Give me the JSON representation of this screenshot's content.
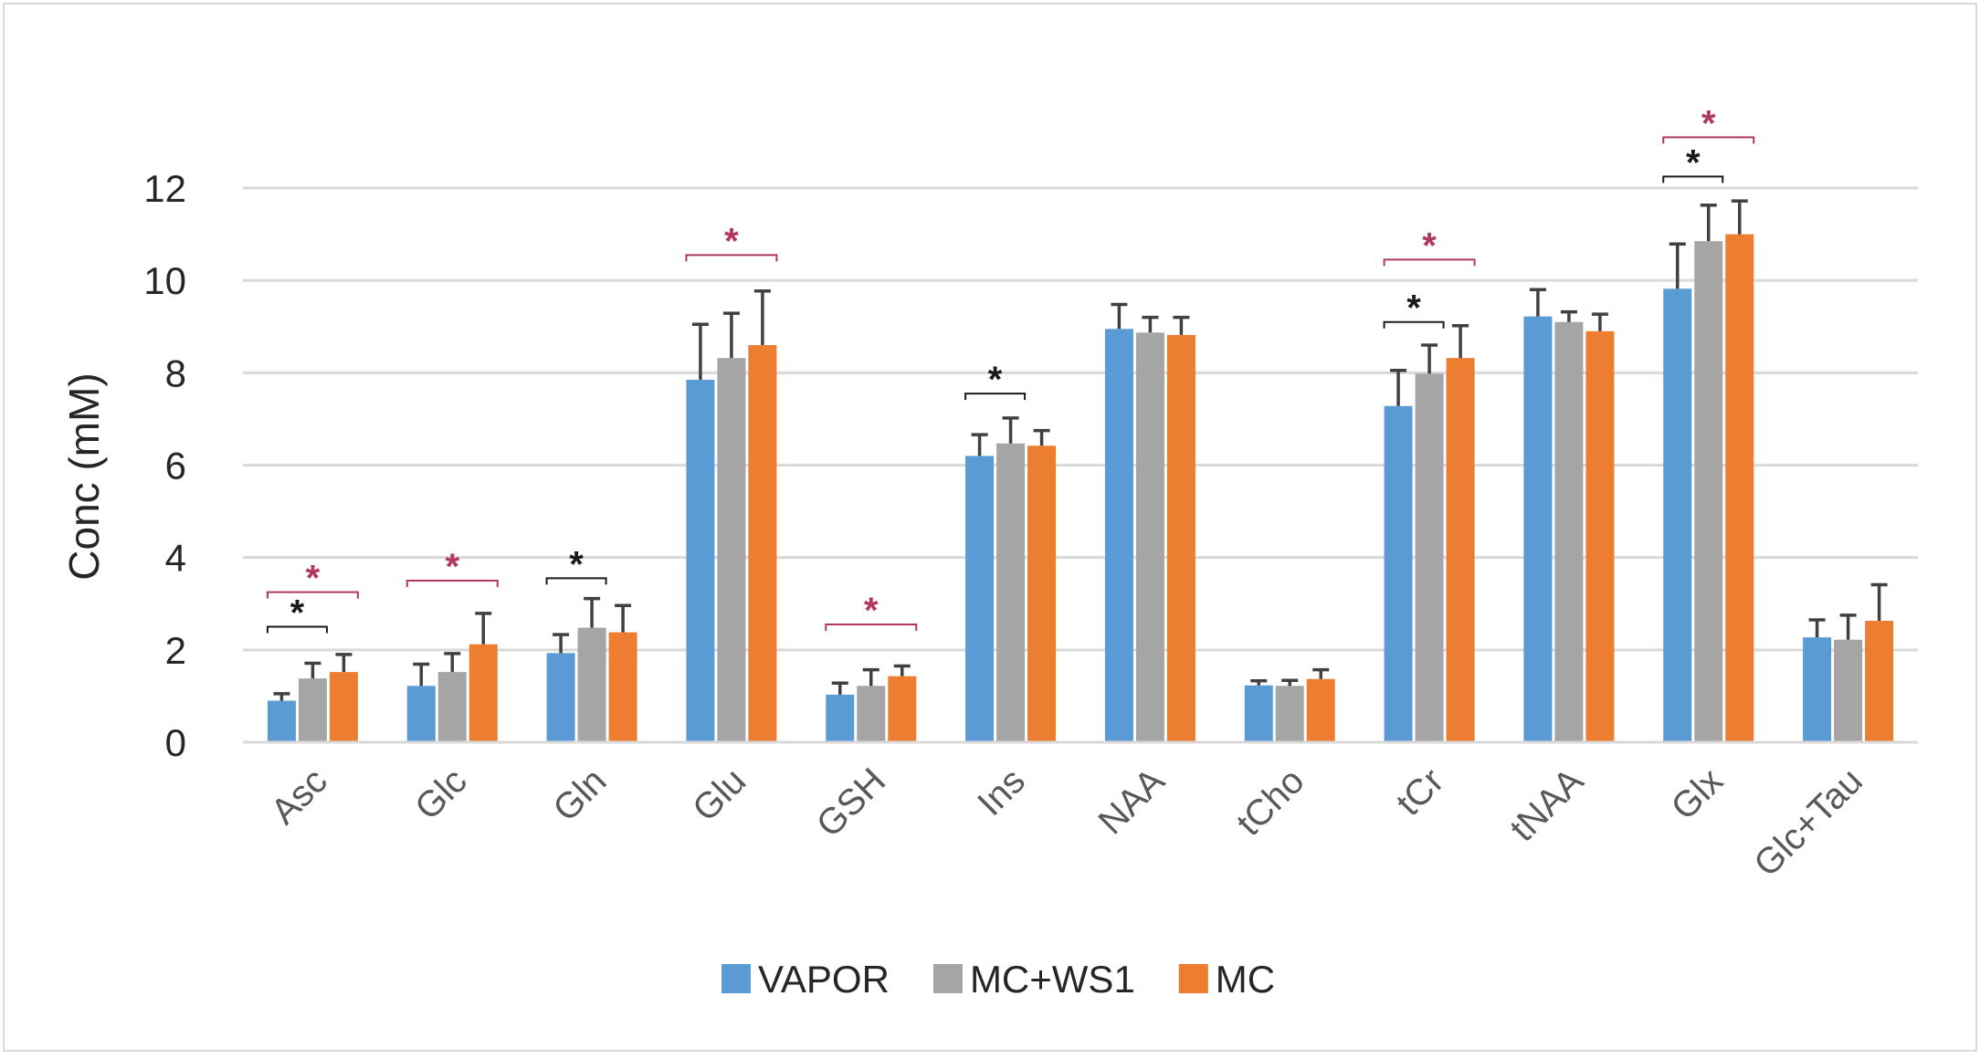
{
  "chart_data": {
    "type": "bar",
    "title": "",
    "xlabel": "",
    "ylabel": "Conc (mM)",
    "ylim": [
      0,
      12
    ],
    "yticks": [
      0,
      2,
      4,
      6,
      8,
      10,
      12
    ],
    "grid": true,
    "legend_position": "bottom",
    "categories": [
      "Asc",
      "Glc",
      "Gln",
      "Glu",
      "GSH",
      "Ins",
      "NAA",
      "tCho",
      "tCr",
      "tNAA",
      "Glx",
      "Glc+Tau"
    ],
    "series": [
      {
        "name": "VAPOR",
        "color": "#5B9BD5",
        "values": [
          0.9,
          1.22,
          1.93,
          7.85,
          1.03,
          6.2,
          8.95,
          1.23,
          7.28,
          9.22,
          9.82,
          2.27
        ],
        "errors": [
          0.15,
          0.47,
          0.4,
          1.2,
          0.25,
          0.46,
          0.53,
          0.1,
          0.77,
          0.58,
          0.97,
          0.38
        ]
      },
      {
        "name": "MC+WS1",
        "color": "#A5A5A5",
        "values": [
          1.38,
          1.52,
          2.48,
          8.32,
          1.22,
          6.47,
          8.87,
          1.22,
          7.98,
          9.1,
          10.85,
          2.22
        ],
        "errors": [
          0.33,
          0.4,
          0.63,
          0.97,
          0.35,
          0.55,
          0.33,
          0.12,
          0.62,
          0.22,
          0.78,
          0.53
        ]
      },
      {
        "name": "MC",
        "color": "#ED7D31",
        "values": [
          1.52,
          2.12,
          2.38,
          8.6,
          1.43,
          6.42,
          8.82,
          1.37,
          8.32,
          8.9,
          11.0,
          2.63
        ],
        "errors": [
          0.38,
          0.67,
          0.58,
          1.17,
          0.22,
          0.33,
          0.38,
          0.2,
          0.7,
          0.37,
          0.72,
          0.78
        ]
      }
    ],
    "significance": [
      {
        "category": "Asc",
        "pair": [
          "VAPOR",
          "MC+WS1"
        ],
        "label": "*",
        "color": "#1a1a1a",
        "level": 2.5
      },
      {
        "category": "Asc",
        "pair": [
          "VAPOR",
          "MC"
        ],
        "label": "*",
        "color": "#B0385F",
        "level": 3.25
      },
      {
        "category": "Glc",
        "pair": [
          "VAPOR",
          "MC"
        ],
        "label": "*",
        "color": "#B0385F",
        "level": 3.5
      },
      {
        "category": "Gln",
        "pair": [
          "VAPOR",
          "MC+WS1"
        ],
        "label": "*",
        "color": "#1a1a1a",
        "level": 3.55
      },
      {
        "category": "Glu",
        "pair": [
          "VAPOR",
          "MC"
        ],
        "label": "*",
        "color": "#B0385F",
        "level": 10.55
      },
      {
        "category": "GSH",
        "pair": [
          "VAPOR",
          "MC"
        ],
        "label": "*",
        "color": "#B0385F",
        "level": 2.55
      },
      {
        "category": "Ins",
        "pair": [
          "VAPOR",
          "MC+WS1"
        ],
        "label": "*",
        "color": "#1a1a1a",
        "level": 7.55
      },
      {
        "category": "tCr",
        "pair": [
          "VAPOR",
          "MC+WS1"
        ],
        "label": "*",
        "color": "#1a1a1a",
        "level": 9.1
      },
      {
        "category": "tCr",
        "pair": [
          "VAPOR",
          "MC"
        ],
        "label": "*",
        "color": "#B0385F",
        "level": 10.45
      },
      {
        "category": "Glx",
        "pair": [
          "VAPOR",
          "MC+WS1"
        ],
        "label": "*",
        "color": "#1a1a1a",
        "level": 12.25
      },
      {
        "category": "Glx",
        "pair": [
          "VAPOR",
          "MC"
        ],
        "label": "*",
        "color": "#B0385F",
        "level": 13.1
      }
    ]
  }
}
